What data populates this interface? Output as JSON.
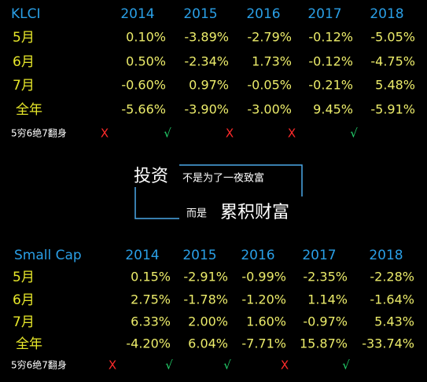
{
  "tables": [
    {
      "header": [
        "KLCI",
        "2014",
        "2015",
        "2016",
        "2017",
        "2018"
      ],
      "rows": [
        [
          "5月",
          "0.10%",
          "-3.89%",
          "-2.79%",
          "-0.12%",
          "-5.05%"
        ],
        [
          "6月",
          "0.50%",
          "-2.34%",
          "1.73%",
          "-0.12%",
          "-4.75%"
        ],
        [
          "7月",
          "-0.60%",
          "0.97%",
          "-0.05%",
          "-0.21%",
          "5.48%"
        ],
        [
          "全年",
          "-5.66%",
          "-3.90%",
          "-3.00%",
          "9.45%",
          "-5.91%"
        ]
      ],
      "verdict": [
        "5穷6绝7翻身",
        "X",
        "√",
        "X",
        "X",
        "√"
      ]
    },
    {
      "header": [
        "Small Cap",
        "2014",
        "2015",
        "2016",
        "2017",
        "2018"
      ],
      "rows": [
        [
          "5月",
          "0.15%",
          "-2.91%",
          "-0.99%",
          "-2.35%",
          "-2.28%"
        ],
        [
          "6月",
          "2.75%",
          "-1.78%",
          "-1.20%",
          "1.14%",
          "-1.64%"
        ],
        [
          "7月",
          "6.33%",
          "2.00%",
          "1.60%",
          "-0.97%",
          "5.43%"
        ],
        [
          "全年",
          "-4.20%",
          "6.04%",
          "-7.71%",
          "15.87%",
          "-33.74%"
        ]
      ],
      "verdict": [
        "5穷6绝7翻身",
        "X",
        "√",
        "√",
        "X",
        "√"
      ]
    }
  ],
  "quote": {
    "line1_big": "投资",
    "line1_small": "不是为了一夜致富",
    "line2_small": "而是",
    "line2_big": "累积财富"
  }
}
